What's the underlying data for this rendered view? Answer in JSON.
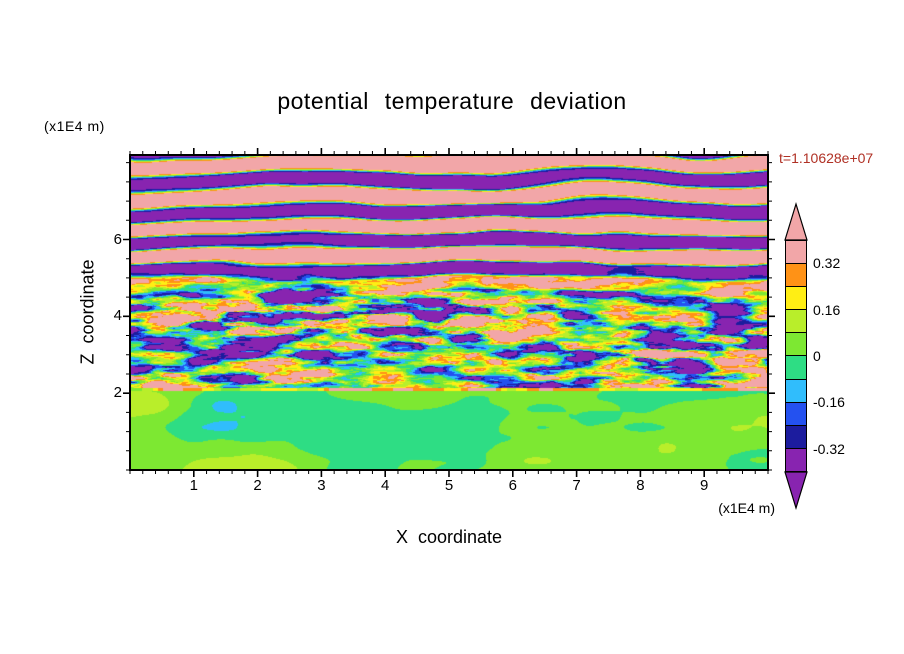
{
  "figure": {
    "background": "#ffffff",
    "text_color": "#000000"
  },
  "chart_data": {
    "type": "heatmap",
    "subtype": "filled-contour",
    "title": "potential temperature deviation",
    "xlabel": "X coordinate",
    "ylabel": "Z coordinate",
    "x_unit_label": "(x1E4 m)",
    "y_unit_label": "(x1E4 m)",
    "timestamp": "t=1.10628e+07",
    "timestamp_color": "#b03024",
    "xlim": [
      0,
      10
    ],
    "ylim": [
      0,
      8.2
    ],
    "x_ticks": [
      {
        "label": "1",
        "value": 1
      },
      {
        "label": "2",
        "value": 2
      },
      {
        "label": "3",
        "value": 3
      },
      {
        "label": "4",
        "value": 4
      },
      {
        "label": "5",
        "value": 5
      },
      {
        "label": "6",
        "value": 6
      },
      {
        "label": "7",
        "value": 7
      },
      {
        "label": "8",
        "value": 8
      },
      {
        "label": "9",
        "value": 9
      }
    ],
    "y_ticks": [
      {
        "label": "2",
        "value": 2
      },
      {
        "label": "4",
        "value": 4
      },
      {
        "label": "6",
        "value": 6
      }
    ],
    "x_minor_step": 0.2,
    "y_minor_step": 0.5,
    "grid": false,
    "legend_position": "right-colorbar",
    "palette": {
      "levels": [
        -0.4,
        -0.32,
        -0.24,
        -0.16,
        -0.08,
        0,
        0.08,
        0.16,
        0.24,
        0.32,
        0.4
      ],
      "colors": [
        "#8824b0",
        "#1c1c9e",
        "#2451f0",
        "#30bdfc",
        "#2edd84",
        "#7de832",
        "#b9ee2a",
        "#ffee14",
        "#ff9216",
        "#f2a6a8"
      ],
      "under_color": "#8824b0",
      "over_color": "#f2a6a8"
    },
    "colorbar": {
      "range": [
        -0.4,
        0.4
      ],
      "tick_labels": [
        {
          "text": "0.32",
          "value": 0.32
        },
        {
          "text": "0.16",
          "value": 0.16
        },
        {
          "text": "0",
          "value": 0
        },
        {
          "text": "-0.16",
          "value": -0.16
        },
        {
          "text": "-0.32",
          "value": -0.32
        }
      ]
    },
    "field_model": {
      "description": "stratified turbulence: near-zero green boundary layer below z=2, fine-scale turbulent band z=2-4.5, saturated pink/purple gravity-wave bands above",
      "boundary_z": 2.06,
      "line_thickness": 0.07,
      "fade": [
        4.1,
        5.4
      ],
      "bottom": {
        "amp": 0.17,
        "bias": 0.015,
        "sx": 0.5,
        "sz": 0.85,
        "octaves": 3
      },
      "middle": {
        "amp": 1.35,
        "bias": -0.04,
        "sx": 1.7,
        "sz": 5.0,
        "octaves": 4,
        "mod_sx": 0.45,
        "mod_sz": 1.0
      },
      "top": {
        "period": 0.78,
        "sharp": 2.3,
        "amp": 0.58,
        "bias": 0.055,
        "warp1": 2.6,
        "w1x": 0.22,
        "w1z": 0.33,
        "warp2": 0.9,
        "w2x": 0.8,
        "w2z": 0.8
      }
    }
  }
}
